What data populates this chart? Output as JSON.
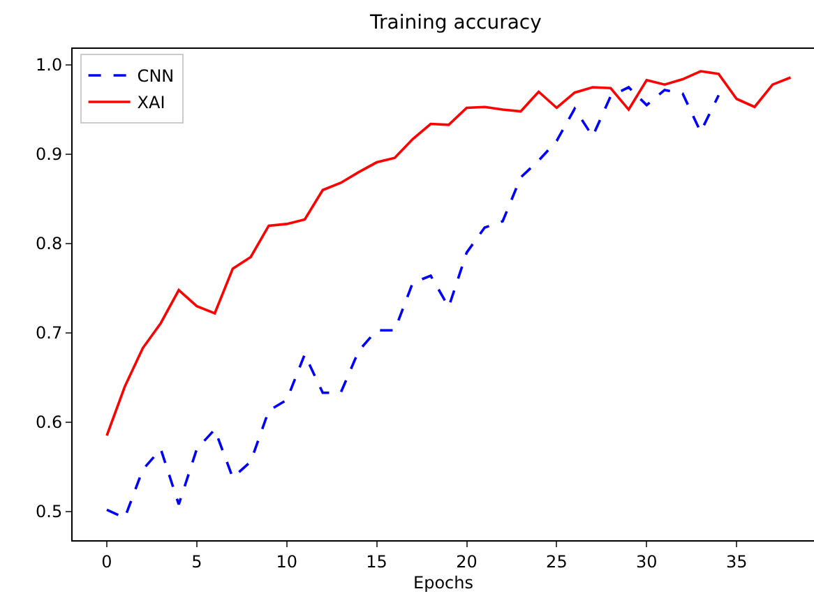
{
  "chart_data": {
    "type": "line",
    "title": "Training accuracy",
    "xlabel": "Epochs",
    "xlim": [
      -1.9,
      39.3
    ],
    "xticks": [
      0,
      5,
      10,
      15,
      20,
      25,
      30,
      35
    ],
    "ylim": [
      0.468,
      1.018
    ],
    "yticks": [
      {
        "value": 0.5,
        "label": "0.5"
      },
      {
        "value": 0.6,
        "label": "0.6"
      },
      {
        "value": 0.7,
        "label": "0.7"
      },
      {
        "value": 0.8,
        "label": "0.8"
      },
      {
        "value": 0.9,
        "label": "0.9"
      },
      {
        "value": 1.0,
        "label": "1.0"
      }
    ],
    "legend": "top left",
    "series": [
      {
        "name": "CNN",
        "color": "#0000ff",
        "line_style": "dashed",
        "x": [
          0,
          1,
          2,
          3,
          4,
          5,
          6,
          7,
          8,
          9,
          10,
          11,
          12,
          13,
          14,
          15,
          16,
          17,
          18,
          19,
          20,
          21,
          22,
          23,
          24,
          25,
          26,
          27,
          28,
          29,
          30,
          31,
          32,
          33,
          34
        ],
        "values": [
          0.502,
          0.493,
          0.547,
          0.57,
          0.508,
          0.57,
          0.592,
          0.538,
          0.556,
          0.613,
          0.625,
          0.676,
          0.633,
          0.633,
          0.68,
          0.703,
          0.703,
          0.756,
          0.764,
          0.729,
          0.79,
          0.818,
          0.825,
          0.874,
          0.893,
          0.915,
          0.951,
          0.92,
          0.965,
          0.975,
          0.955,
          0.972,
          0.968,
          0.925,
          0.966
        ]
      },
      {
        "name": "XAI",
        "color": "#ff0000",
        "line_style": "solid",
        "x": [
          0,
          1,
          2,
          3,
          4,
          5,
          6,
          7,
          8,
          9,
          10,
          11,
          12,
          13,
          14,
          15,
          16,
          17,
          18,
          19,
          20,
          21,
          22,
          23,
          24,
          25,
          26,
          27,
          28,
          29,
          30,
          31,
          32,
          33,
          34,
          35,
          36,
          37,
          38
        ],
        "values": [
          0.585,
          0.64,
          0.683,
          0.711,
          0.748,
          0.73,
          0.722,
          0.772,
          0.785,
          0.82,
          0.822,
          0.827,
          0.86,
          0.868,
          0.88,
          0.891,
          0.896,
          0.917,
          0.934,
          0.933,
          0.952,
          0.953,
          0.95,
          0.948,
          0.97,
          0.952,
          0.969,
          0.975,
          0.974,
          0.95,
          0.983,
          0.978,
          0.984,
          0.993,
          0.99,
          0.962,
          0.953,
          0.978,
          0.986
        ]
      }
    ]
  }
}
